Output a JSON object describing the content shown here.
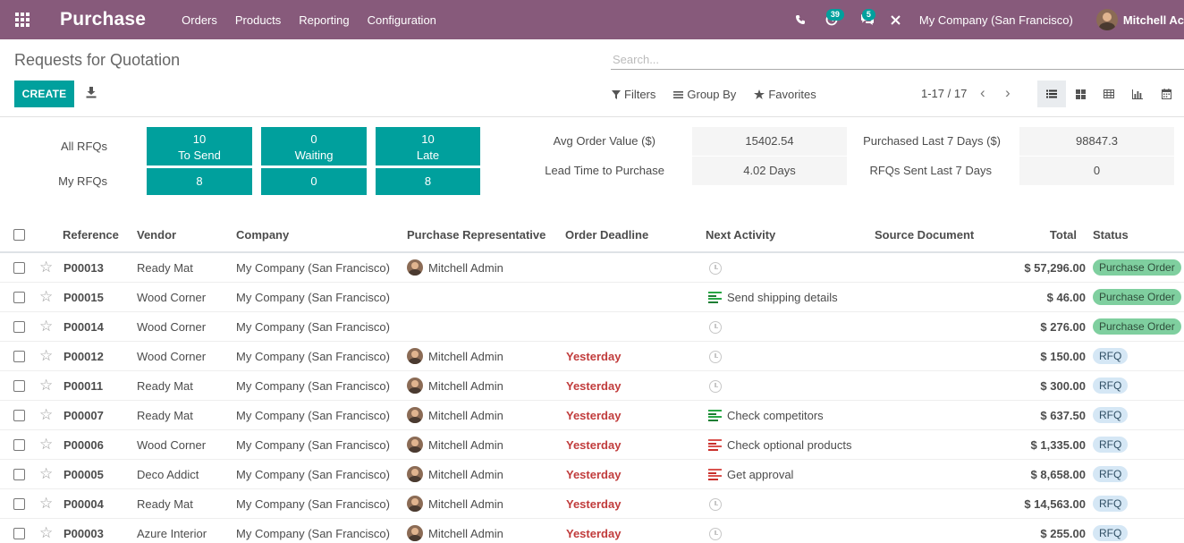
{
  "navbar": {
    "app_title": "Purchase",
    "menu": [
      "Orders",
      "Products",
      "Reporting",
      "Configuration"
    ],
    "activity_count": "39",
    "message_count": "5",
    "company": "My Company (San Francisco)",
    "user": "Mitchell Ac"
  },
  "control": {
    "breadcrumb": "Requests for Quotation",
    "search_placeholder": "Search...",
    "create_label": "CREATE",
    "filters_label": "Filters",
    "groupby_label": "Group By",
    "favorites_label": "Favorites",
    "pager": "1-17 / 17"
  },
  "dashboard": {
    "all_rfqs_label": "All RFQs",
    "my_rfqs_label": "My RFQs",
    "tiles": [
      {
        "count": "10",
        "label": "To Send",
        "my": "8"
      },
      {
        "count": "0",
        "label": "Waiting",
        "my": "0"
      },
      {
        "count": "10",
        "label": "Late",
        "my": "8"
      }
    ],
    "kpis": [
      {
        "label": "Avg Order Value ($)",
        "value": "15402.54"
      },
      {
        "label": "Lead Time to Purchase",
        "value": "4.02  Days"
      },
      {
        "label": "Purchased Last 7 Days ($)",
        "value": "98847.3"
      },
      {
        "label": "RFQs Sent Last 7 Days",
        "value": "0"
      }
    ]
  },
  "columns": [
    "Reference",
    "Vendor",
    "Company",
    "Purchase Representative",
    "Order Deadline",
    "Next Activity",
    "Source Document",
    "Total",
    "Status"
  ],
  "rows": [
    {
      "ref": "P00013",
      "vendor": "Ready Mat",
      "company": "My Company (San Francisco)",
      "rep": "Mitchell Admin",
      "deadline": "",
      "activity": "",
      "activity_icon": "clock-icon",
      "total": "$ 57,296.00",
      "status": "Purchase Order",
      "status_color": "#7fcf9f"
    },
    {
      "ref": "P00015",
      "vendor": "Wood Corner",
      "company": "My Company (San Francisco)",
      "rep": "",
      "deadline": "",
      "activity": "Send shipping details",
      "activity_icon": "activity-green-icon",
      "total": "$ 46.00",
      "status": "Purchase Order",
      "status_color": "#7fcf9f"
    },
    {
      "ref": "P00014",
      "vendor": "Wood Corner",
      "company": "My Company (San Francisco)",
      "rep": "",
      "deadline": "",
      "activity": "",
      "activity_icon": "clock-icon",
      "total": "$ 276.00",
      "status": "Purchase Order",
      "status_color": "#7fcf9f"
    },
    {
      "ref": "P00012",
      "vendor": "Wood Corner",
      "company": "My Company (San Francisco)",
      "rep": "Mitchell Admin",
      "deadline": "Yesterday",
      "activity": "",
      "activity_icon": "clock-icon",
      "total": "$ 150.00",
      "status": "RFQ",
      "status_color": "#d5e7f5"
    },
    {
      "ref": "P00011",
      "vendor": "Ready Mat",
      "company": "My Company (San Francisco)",
      "rep": "Mitchell Admin",
      "deadline": "Yesterday",
      "activity": "",
      "activity_icon": "clock-icon",
      "total": "$ 300.00",
      "status": "RFQ",
      "status_color": "#d5e7f5"
    },
    {
      "ref": "P00007",
      "vendor": "Ready Mat",
      "company": "My Company (San Francisco)",
      "rep": "Mitchell Admin",
      "deadline": "Yesterday",
      "activity": "Check competitors",
      "activity_icon": "activity-green-icon",
      "total": "$ 637.50",
      "status": "RFQ",
      "status_color": "#d5e7f5"
    },
    {
      "ref": "P00006",
      "vendor": "Wood Corner",
      "company": "My Company (San Francisco)",
      "rep": "Mitchell Admin",
      "deadline": "Yesterday",
      "activity": "Check optional products",
      "activity_icon": "activity-red-icon",
      "total": "$ 1,335.00",
      "status": "RFQ",
      "status_color": "#d5e7f5"
    },
    {
      "ref": "P00005",
      "vendor": "Deco Addict",
      "company": "My Company (San Francisco)",
      "rep": "Mitchell Admin",
      "deadline": "Yesterday",
      "activity": "Get approval",
      "activity_icon": "activity-red-icon",
      "total": "$ 8,658.00",
      "status": "RFQ",
      "status_color": "#d5e7f5"
    },
    {
      "ref": "P00004",
      "vendor": "Ready Mat",
      "company": "My Company (San Francisco)",
      "rep": "Mitchell Admin",
      "deadline": "Yesterday",
      "activity": "",
      "activity_icon": "clock-icon",
      "total": "$ 14,563.00",
      "status": "RFQ",
      "status_color": "#d5e7f5"
    },
    {
      "ref": "P00003",
      "vendor": "Azure Interior",
      "company": "My Company (San Francisco)",
      "rep": "Mitchell Admin",
      "deadline": "Yesterday",
      "activity": "",
      "activity_icon": "clock-icon",
      "total": "$ 255.00",
      "status": "RFQ",
      "status_color": "#d5e7f5"
    }
  ],
  "colors": {
    "navbar": "#875a7b",
    "primary": "#00a09d",
    "deadline": "#c13c3c",
    "po_badge": "#7fcf9f",
    "rfq_badge": "#d5e7f5"
  }
}
